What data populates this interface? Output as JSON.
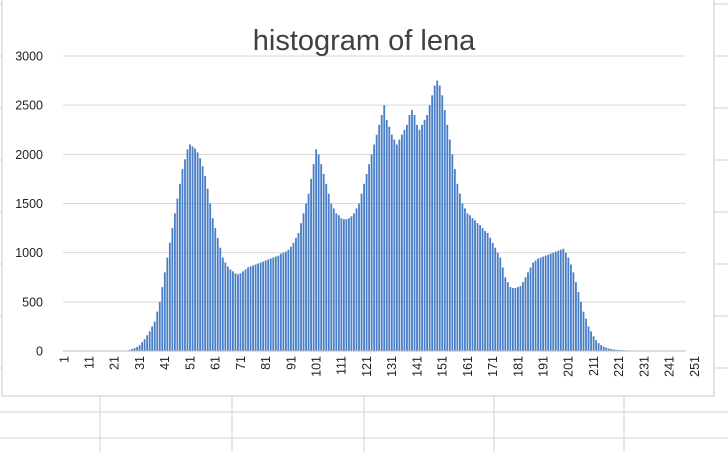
{
  "chart_data": {
    "type": "bar",
    "title": "histogram of lena",
    "xlabel": "",
    "ylabel": "",
    "x_range": [
      1,
      256
    ],
    "ylim": [
      0,
      3000
    ],
    "y_ticks": [
      0,
      500,
      1000,
      1500,
      2000,
      2500,
      3000
    ],
    "x_tick_labels": [
      "1",
      "11",
      "21",
      "31",
      "41",
      "51",
      "61",
      "71",
      "81",
      "91",
      "101",
      "111",
      "121",
      "131",
      "141",
      "151",
      "161",
      "171",
      "181",
      "191",
      "201",
      "211",
      "221",
      "231",
      "241",
      "251"
    ],
    "grid": true,
    "legend": "none",
    "bar_color": "#4a7fc8",
    "values": [
      0,
      0,
      0,
      0,
      0,
      0,
      0,
      0,
      0,
      0,
      0,
      0,
      0,
      0,
      0,
      0,
      0,
      0,
      0,
      0,
      0,
      0,
      0,
      0,
      0,
      5,
      10,
      20,
      30,
      40,
      60,
      90,
      120,
      160,
      200,
      250,
      300,
      400,
      500,
      650,
      800,
      950,
      1100,
      1250,
      1400,
      1550,
      1700,
      1850,
      1950,
      2050,
      2100,
      2080,
      2060,
      2020,
      1960,
      1880,
      1780,
      1650,
      1500,
      1350,
      1250,
      1150,
      1050,
      950,
      900,
      860,
      830,
      810,
      790,
      780,
      790,
      810,
      830,
      850,
      860,
      870,
      880,
      890,
      900,
      910,
      920,
      930,
      940,
      950,
      960,
      970,
      990,
      1000,
      1010,
      1030,
      1060,
      1100,
      1150,
      1200,
      1300,
      1400,
      1500,
      1600,
      1750,
      1900,
      2050,
      2000,
      1900,
      1800,
      1700,
      1600,
      1500,
      1450,
      1400,
      1380,
      1350,
      1340,
      1340,
      1350,
      1370,
      1400,
      1450,
      1500,
      1600,
      1700,
      1800,
      1900,
      2000,
      2100,
      2200,
      2300,
      2400,
      2500,
      2350,
      2280,
      2200,
      2150,
      2100,
      2150,
      2200,
      2250,
      2300,
      2400,
      2450,
      2400,
      2300,
      2250,
      2300,
      2350,
      2400,
      2500,
      2600,
      2700,
      2750,
      2700,
      2600,
      2450,
      2300,
      2150,
      2000,
      1850,
      1700,
      1600,
      1500,
      1450,
      1400,
      1380,
      1350,
      1330,
      1300,
      1280,
      1250,
      1220,
      1200,
      1150,
      1100,
      1050,
      1000,
      950,
      850,
      750,
      700,
      650,
      640,
      640,
      650,
      660,
      700,
      750,
      800,
      850,
      900,
      920,
      940,
      950,
      960,
      970,
      980,
      990,
      1000,
      1010,
      1020,
      1030,
      1040,
      1000,
      950,
      880,
      800,
      700,
      600,
      500,
      400,
      330,
      250,
      200,
      150,
      110,
      80,
      60,
      45,
      35,
      25,
      20,
      15,
      12,
      10,
      8,
      7,
      6,
      5,
      4,
      3,
      2,
      2,
      1,
      1,
      0,
      0,
      0,
      0,
      0,
      0,
      0,
      0,
      0,
      0,
      0,
      0,
      0,
      0,
      0,
      0
    ]
  }
}
